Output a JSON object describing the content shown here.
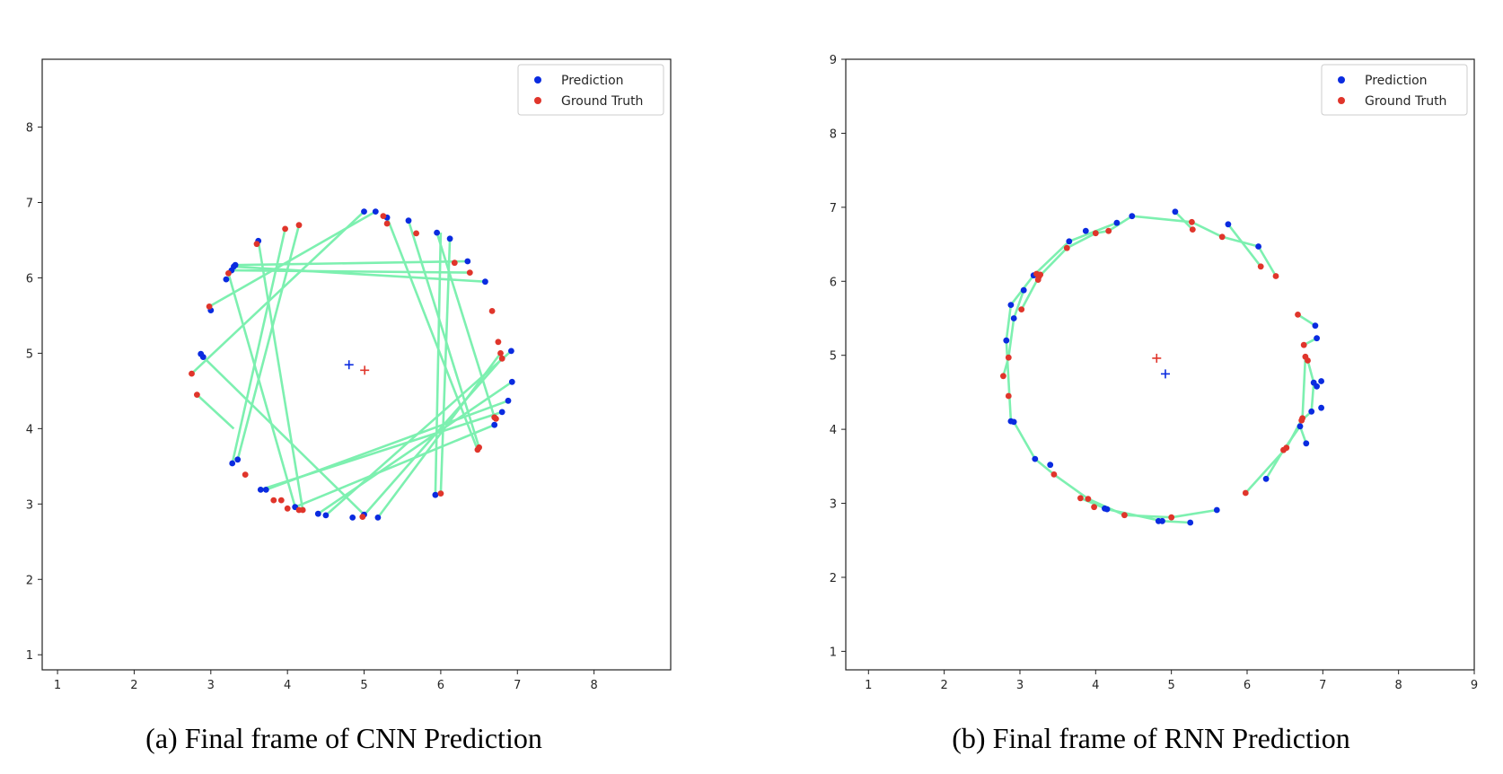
{
  "figure": {
    "captions": [
      "(a) Final frame of CNN Prediction",
      "(b) Final frame of RNN Prediction"
    ]
  },
  "colors": {
    "prediction": "#0a2be0",
    "ground_truth": "#e0352b",
    "link": "#7df0b0"
  },
  "chart_data": [
    {
      "type": "scatter",
      "title": "",
      "xlabel": "",
      "ylabel": "",
      "xlim": [
        0.8,
        9.0
      ],
      "ylim": [
        0.8,
        8.9
      ],
      "xticks": [
        1,
        2,
        3,
        4,
        5,
        6,
        7,
        8
      ],
      "yticks": [
        1,
        2,
        3,
        4,
        5,
        6,
        7,
        8
      ],
      "grid": false,
      "legend": {
        "position": "top-right",
        "entries": [
          "Prediction",
          "Ground Truth"
        ]
      },
      "series": [
        {
          "name": "Prediction",
          "color": "#0a2be0",
          "points": [
            [
              5.0,
              6.88
            ],
            [
              5.15,
              6.88
            ],
            [
              5.3,
              6.8
            ],
            [
              5.58,
              6.76
            ],
            [
              5.95,
              6.6
            ],
            [
              6.12,
              6.52
            ],
            [
              6.35,
              6.22
            ],
            [
              6.58,
              5.95
            ],
            [
              6.92,
              5.03
            ],
            [
              6.93,
              4.62
            ],
            [
              6.88,
              4.37
            ],
            [
              6.8,
              4.22
            ],
            [
              6.7,
              4.05
            ],
            [
              5.93,
              3.12
            ],
            [
              5.18,
              2.82
            ],
            [
              5.0,
              2.86
            ],
            [
              4.85,
              2.82
            ],
            [
              4.5,
              2.85
            ],
            [
              4.4,
              2.87
            ],
            [
              4.1,
              2.96
            ],
            [
              3.72,
              3.19
            ],
            [
              3.65,
              3.19
            ],
            [
              3.35,
              3.59
            ],
            [
              3.28,
              3.54
            ],
            [
              2.9,
              4.95
            ],
            [
              2.87,
              4.99
            ],
            [
              3.0,
              5.57
            ],
            [
              3.2,
              5.98
            ],
            [
              3.27,
              6.1
            ],
            [
              3.3,
              6.15
            ],
            [
              3.32,
              6.17
            ],
            [
              3.62,
              6.49
            ]
          ]
        },
        {
          "name": "Ground Truth",
          "color": "#e0352b",
          "points": [
            [
              5.25,
              6.82
            ],
            [
              5.3,
              6.72
            ],
            [
              5.68,
              6.59
            ],
            [
              4.15,
              6.7
            ],
            [
              3.97,
              6.65
            ],
            [
              3.6,
              6.45
            ],
            [
              3.23,
              6.06
            ],
            [
              2.98,
              5.62
            ],
            [
              2.75,
              4.73
            ],
            [
              2.82,
              4.45
            ],
            [
              3.45,
              3.39
            ],
            [
              3.82,
              3.05
            ],
            [
              3.92,
              3.05
            ],
            [
              4.0,
              2.94
            ],
            [
              4.15,
              2.92
            ],
            [
              4.2,
              2.92
            ],
            [
              4.98,
              2.83
            ],
            [
              6.0,
              3.14
            ],
            [
              6.48,
              3.72
            ],
            [
              6.5,
              3.75
            ],
            [
              6.7,
              4.15
            ],
            [
              6.72,
              4.13
            ],
            [
              6.8,
              4.93
            ],
            [
              6.78,
              5.0
            ],
            [
              6.75,
              5.15
            ],
            [
              6.67,
              5.56
            ],
            [
              6.38,
              6.07
            ],
            [
              6.18,
              6.2
            ]
          ]
        }
      ],
      "links": [
        [
          [
            5.0,
            6.88
          ],
          [
            2.75,
            4.73
          ]
        ],
        [
          [
            5.15,
            6.88
          ],
          [
            2.98,
            5.62
          ]
        ],
        [
          [
            5.3,
            6.8
          ],
          [
            6.48,
            3.72
          ]
        ],
        [
          [
            5.58,
            6.76
          ],
          [
            6.5,
            3.75
          ]
        ],
        [
          [
            5.95,
            6.6
          ],
          [
            6.7,
            4.15
          ]
        ],
        [
          [
            3.32,
            6.17
          ],
          [
            6.35,
            6.22
          ]
        ],
        [
          [
            3.27,
            6.1
          ],
          [
            6.38,
            6.07
          ]
        ],
        [
          [
            3.3,
            6.15
          ],
          [
            6.58,
            5.95
          ]
        ],
        [
          [
            2.82,
            4.45
          ],
          [
            3.3,
            4.0
          ]
        ],
        [
          [
            3.62,
            6.49
          ],
          [
            4.2,
            2.92
          ]
        ],
        [
          [
            3.23,
            6.06
          ],
          [
            4.1,
            2.96
          ]
        ],
        [
          [
            3.28,
            3.54
          ],
          [
            3.97,
            6.65
          ]
        ],
        [
          [
            3.35,
            3.59
          ],
          [
            4.15,
            6.7
          ]
        ],
        [
          [
            3.72,
            3.19
          ],
          [
            6.88,
            4.37
          ]
        ],
        [
          [
            3.65,
            3.19
          ],
          [
            6.8,
            4.22
          ]
        ],
        [
          [
            4.1,
            2.96
          ],
          [
            6.7,
            4.05
          ]
        ],
        [
          [
            4.4,
            2.87
          ],
          [
            6.93,
            4.62
          ]
        ],
        [
          [
            4.5,
            2.85
          ],
          [
            6.92,
            5.03
          ]
        ],
        [
          [
            5.0,
            2.86
          ],
          [
            2.9,
            4.95
          ]
        ],
        [
          [
            4.98,
            2.83
          ],
          [
            6.8,
            4.93
          ]
        ],
        [
          [
            5.18,
            2.82
          ],
          [
            6.78,
            5.0
          ]
        ],
        [
          [
            5.93,
            3.12
          ],
          [
            6.0,
            6.6
          ]
        ],
        [
          [
            6.0,
            3.14
          ],
          [
            6.12,
            6.52
          ]
        ]
      ]
    },
    {
      "type": "scatter",
      "title": "",
      "xlabel": "",
      "ylabel": "",
      "xlim": [
        0.7,
        9.0
      ],
      "ylim": [
        0.75,
        9.0
      ],
      "xticks": [
        1,
        2,
        3,
        4,
        5,
        6,
        7,
        8,
        9
      ],
      "yticks": [
        1,
        2,
        3,
        4,
        5,
        6,
        7,
        8,
        9
      ],
      "grid": false,
      "legend": {
        "position": "top-right",
        "entries": [
          "Prediction",
          "Ground Truth"
        ]
      },
      "series": [
        {
          "name": "Prediction",
          "color": "#0a2be0",
          "points": [
            [
              5.05,
              6.94
            ],
            [
              5.75,
              6.77
            ],
            [
              6.15,
              6.47
            ],
            [
              6.9,
              5.4
            ],
            [
              6.92,
              5.23
            ],
            [
              6.88,
              4.63
            ],
            [
              6.92,
              4.58
            ],
            [
              6.98,
              4.65
            ],
            [
              6.98,
              4.29
            ],
            [
              6.85,
              4.24
            ],
            [
              6.78,
              3.81
            ],
            [
              6.7,
              4.04
            ],
            [
              6.25,
              3.33
            ],
            [
              5.6,
              2.91
            ],
            [
              5.25,
              2.74
            ],
            [
              4.88,
              2.76
            ],
            [
              4.83,
              2.76
            ],
            [
              4.15,
              2.92
            ],
            [
              4.12,
              2.93
            ],
            [
              3.4,
              3.52
            ],
            [
              3.2,
              3.6
            ],
            [
              2.92,
              4.1
            ],
            [
              2.88,
              4.11
            ],
            [
              2.82,
              5.2
            ],
            [
              2.92,
              5.5
            ],
            [
              2.88,
              5.68
            ],
            [
              3.05,
              5.88
            ],
            [
              3.18,
              6.08
            ],
            [
              3.65,
              6.54
            ],
            [
              3.87,
              6.68
            ],
            [
              4.28,
              6.79
            ],
            [
              4.48,
              6.88
            ]
          ]
        },
        {
          "name": "Ground Truth",
          "color": "#e0352b",
          "points": [
            [
              5.27,
              6.8
            ],
            [
              5.28,
              6.7
            ],
            [
              5.67,
              6.6
            ],
            [
              6.38,
              6.07
            ],
            [
              6.18,
              6.2
            ],
            [
              6.67,
              5.55
            ],
            [
              6.75,
              5.14
            ],
            [
              6.77,
              4.98
            ],
            [
              6.8,
              4.93
            ],
            [
              6.73,
              4.15
            ],
            [
              6.72,
              4.12
            ],
            [
              6.52,
              3.75
            ],
            [
              6.48,
              3.72
            ],
            [
              5.98,
              3.14
            ],
            [
              5.0,
              2.81
            ],
            [
              4.38,
              2.84
            ],
            [
              3.98,
              2.95
            ],
            [
              3.9,
              3.06
            ],
            [
              3.8,
              3.07
            ],
            [
              3.45,
              3.39
            ],
            [
              2.85,
              4.45
            ],
            [
              2.78,
              4.72
            ],
            [
              2.85,
              4.97
            ],
            [
              3.02,
              5.62
            ],
            [
              3.24,
              6.02
            ],
            [
              3.25,
              6.06
            ],
            [
              3.27,
              6.09
            ],
            [
              3.22,
              6.1
            ],
            [
              3.62,
              6.45
            ],
            [
              4.0,
              6.65
            ],
            [
              4.17,
              6.68
            ]
          ]
        }
      ],
      "links": [
        [
          [
            2.88,
            4.11
          ],
          [
            2.82,
            5.2
          ],
          [
            2.88,
            5.68
          ],
          [
            3.18,
            6.08
          ],
          [
            3.65,
            6.54
          ],
          [
            4.28,
            6.79
          ]
        ],
        [
          [
            3.02,
            5.62
          ],
          [
            3.25,
            6.06
          ],
          [
            3.62,
            6.45
          ],
          [
            4.0,
            6.65
          ],
          [
            4.17,
            6.68
          ],
          [
            4.48,
            6.88
          ],
          [
            5.27,
            6.8
          ],
          [
            5.67,
            6.6
          ],
          [
            6.15,
            6.47
          ],
          [
            6.38,
            6.07
          ]
        ],
        [
          [
            5.05,
            6.94
          ],
          [
            5.28,
            6.7
          ]
        ],
        [
          [
            5.75,
            6.77
          ],
          [
            6.18,
            6.2
          ]
        ],
        [
          [
            6.67,
            5.55
          ],
          [
            6.9,
            5.4
          ]
        ],
        [
          [
            6.75,
            5.14
          ],
          [
            6.92,
            5.23
          ]
        ],
        [
          [
            6.8,
            4.93
          ],
          [
            6.88,
            4.63
          ],
          [
            6.85,
            4.24
          ],
          [
            6.72,
            4.12
          ]
        ],
        [
          [
            6.77,
            4.98
          ],
          [
            6.73,
            4.15
          ],
          [
            6.52,
            3.75
          ],
          [
            5.98,
            3.14
          ]
        ],
        [
          [
            6.78,
            3.81
          ],
          [
            6.7,
            4.04
          ],
          [
            6.48,
            3.72
          ],
          [
            6.25,
            3.33
          ]
        ],
        [
          [
            2.92,
            4.1
          ],
          [
            3.2,
            3.6
          ],
          [
            3.45,
            3.39
          ],
          [
            3.9,
            3.06
          ],
          [
            4.38,
            2.84
          ],
          [
            5.0,
            2.81
          ],
          [
            5.6,
            2.91
          ]
        ],
        [
          [
            3.8,
            3.07
          ],
          [
            4.15,
            2.92
          ],
          [
            4.88,
            2.76
          ],
          [
            5.25,
            2.74
          ]
        ],
        [
          [
            2.78,
            4.72
          ],
          [
            2.85,
            4.97
          ],
          [
            2.92,
            5.5
          ],
          [
            3.05,
            5.88
          ]
        ]
      ]
    }
  ]
}
